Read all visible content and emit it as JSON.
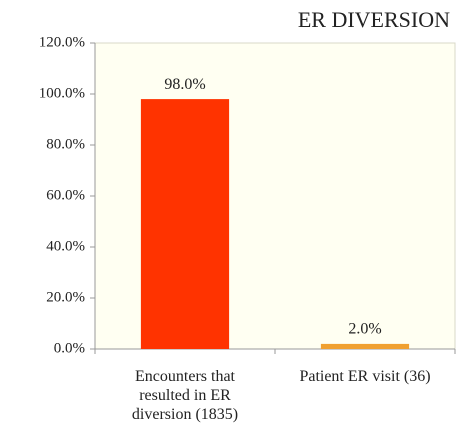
{
  "chart_data": {
    "type": "bar",
    "title": "ER DIVERSION",
    "categories": [
      "Encounters that resulted in ER diversion (1835)",
      "Patient ER visit (36)"
    ],
    "values": [
      98,
      2
    ],
    "value_labels": [
      "98.0%",
      "2.0%"
    ],
    "colors": [
      "#ff3300",
      "#f0a030"
    ],
    "ylim": [
      0,
      120
    ],
    "yticks": [
      {
        "value": 0,
        "label": "0.0%"
      },
      {
        "value": 20,
        "label": "20.0%"
      },
      {
        "value": 40,
        "label": "40.0%"
      },
      {
        "value": 60,
        "label": "60.0%"
      },
      {
        "value": 80,
        "label": "80.0%"
      },
      {
        "value": 100,
        "label": "100.0%"
      },
      {
        "value": 120,
        "label": "120.0%"
      }
    ],
    "grid": false
  }
}
